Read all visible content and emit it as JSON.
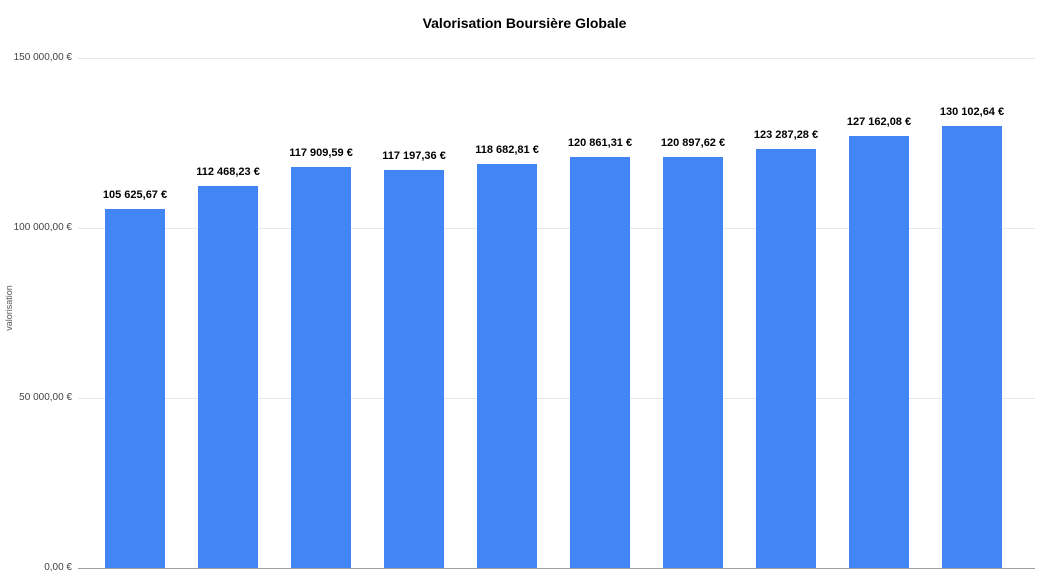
{
  "chart_data": {
    "type": "bar",
    "title": "Valorisation Boursière Globale",
    "ylabel": "valorisation",
    "xlabel": "",
    "ylim": [
      0,
      150000
    ],
    "grid": true,
    "legend": "none",
    "bar_color": "#4285F4",
    "gridline_color": "#e6e6e6",
    "baseline_color": "#9e9e9e",
    "y_ticks": [
      {
        "value": 0,
        "label": "0,00 €"
      },
      {
        "value": 50000,
        "label": "50 000,00 €"
      },
      {
        "value": 100000,
        "label": "100 000,00 €"
      },
      {
        "value": 150000,
        "label": "150 000,00 €"
      }
    ],
    "values": [
      105625.67,
      112468.23,
      117909.59,
      117197.36,
      118682.81,
      120861.31,
      120897.62,
      123287.28,
      127162.08,
      130102.64
    ],
    "bar_labels": [
      "105 625,67 €",
      "112 468,23 €",
      "117 909,59 €",
      "117 197,36 €",
      "118 682,81 €",
      "120 861,31 €",
      "120 897,62 €",
      "123 287,28 €",
      "127 162,08 €",
      "130 102,64 €"
    ]
  }
}
